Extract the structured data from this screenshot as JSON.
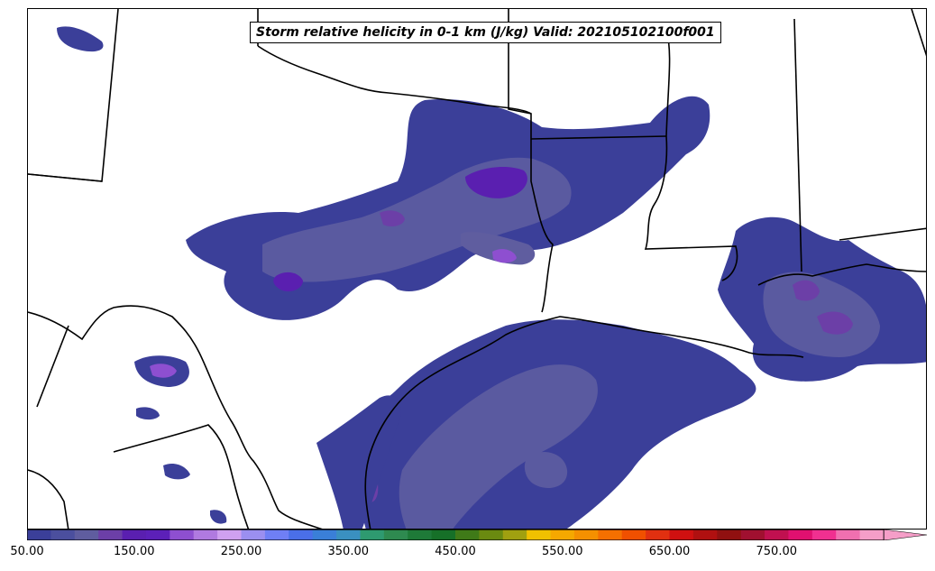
{
  "title": "Storm relative helicity in 0-1 km (J/kg) Valid: 202105102100f001",
  "colorbar": {
    "tick_labels": [
      "50.00",
      "150.00",
      "250.00",
      "350.00",
      "450.00",
      "550.00",
      "650.00",
      "750.00"
    ],
    "tick_values": [
      50,
      150,
      250,
      350,
      450,
      550,
      650,
      750
    ],
    "range": [
      50,
      850
    ],
    "extend": "max",
    "colors": [
      "#3b3f99",
      "#4b4f9e",
      "#5f5d9f",
      "#6c3fa7",
      "#5a1fb0",
      "#5c20b8",
      "#8e4fd0",
      "#b07ae0",
      "#cfa0f0",
      "#9b8ff0",
      "#6f7ff5",
      "#4a6fe8",
      "#3a7fd8",
      "#3a90c0",
      "#2e9a70",
      "#2e8a50",
      "#1e7a38",
      "#167028",
      "#3f7a18",
      "#6a8a10",
      "#a0a010",
      "#f0c000",
      "#f5a800",
      "#f59000",
      "#f57000",
      "#f05000",
      "#e03010",
      "#d01010",
      "#b01010",
      "#901010",
      "#a01030",
      "#c01050",
      "#e01070",
      "#f03090",
      "#f070b0",
      "#f59ec8"
    ]
  },
  "map": {
    "field": "Storm relative helicity in 0-1 km",
    "units": "J/kg",
    "valid": "202105102100f001"
  }
}
